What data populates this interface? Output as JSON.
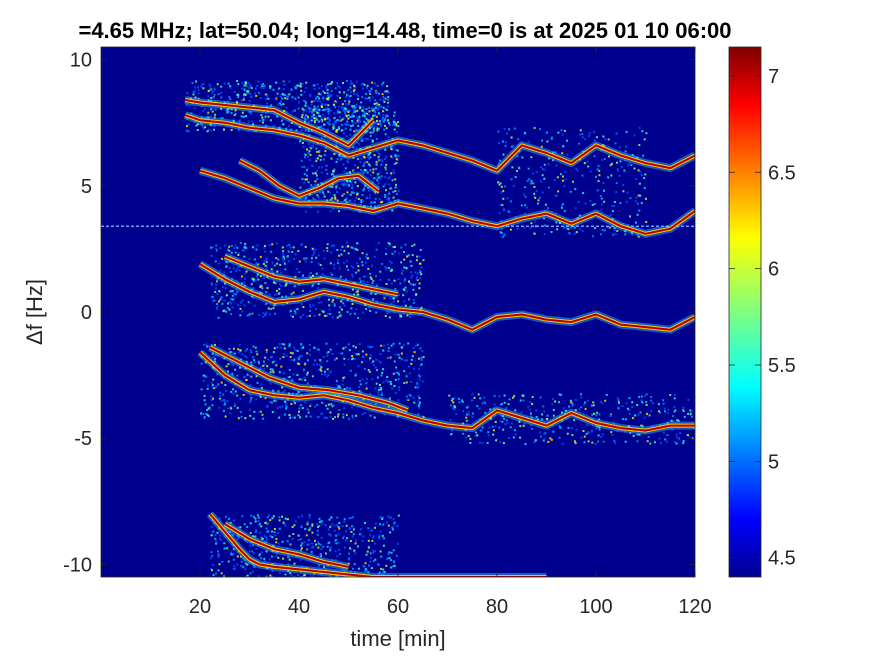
{
  "chart_data": {
    "type": "heatmap",
    "title": "=4.65 MHz;  lat=50.04; long=14.48, time=0 is at 2025 01 10 06:00",
    "xlabel": "time [min]",
    "ylabel": "Δf [Hz]",
    "xlim": [
      0,
      120
    ],
    "ylim": [
      -10.5,
      10.5
    ],
    "x_ticks": [
      "20",
      "40",
      "60",
      "80",
      "100",
      "120"
    ],
    "y_ticks": [
      "10",
      "5",
      "0",
      "-5",
      "-10"
    ],
    "colorbar": {
      "range": [
        4.4,
        7.15
      ],
      "ticks": [
        "7",
        "6.5",
        "6",
        "5.5",
        "5",
        "4.5"
      ],
      "colormap": "jet"
    },
    "background_color": "#00008f",
    "horizontal_line": {
      "y": 3.4,
      "color": "#6f9bff"
    },
    "traces": [
      {
        "name": "",
        "x": [
          17,
          20,
          25,
          30,
          35,
          40,
          45,
          50,
          55,
          60,
          65,
          70,
          75,
          80,
          85,
          90,
          95,
          100,
          105,
          110,
          115,
          120
        ],
        "y": [
          7.8,
          7.6,
          7.5,
          7.3,
          7.2,
          7.0,
          6.7,
          6.2,
          6.5,
          6.8,
          6.6,
          6.3,
          6.0,
          5.6,
          6.6,
          6.3,
          5.9,
          6.6,
          6.2,
          5.9,
          5.7,
          6.2
        ]
      },
      {
        "name": "",
        "x": [
          17,
          20,
          25,
          30,
          35,
          40,
          45,
          50,
          55
        ],
        "y": [
          8.4,
          8.3,
          8.2,
          8.1,
          8.0,
          7.5,
          7.1,
          6.6,
          7.6
        ]
      },
      {
        "name": "",
        "x": [
          20,
          25,
          30,
          35,
          40,
          45,
          50,
          55,
          60,
          65,
          70,
          75,
          80,
          85,
          90,
          95,
          100,
          105,
          110,
          115,
          120
        ],
        "y": [
          5.6,
          5.3,
          4.9,
          4.5,
          4.3,
          4.3,
          4.2,
          4.0,
          4.3,
          4.1,
          3.9,
          3.6,
          3.4,
          3.7,
          3.9,
          3.5,
          3.9,
          3.4,
          3.1,
          3.3,
          4.0
        ]
      },
      {
        "name": "",
        "x": [
          28,
          32,
          36,
          40,
          44,
          48,
          52,
          56
        ],
        "y": [
          6.0,
          5.6,
          5.0,
          4.6,
          4.9,
          5.3,
          5.4,
          4.8
        ]
      },
      {
        "name": "",
        "x": [
          20,
          25,
          30,
          35,
          40,
          45,
          50,
          55,
          60,
          65,
          70,
          75,
          80,
          85,
          90,
          95,
          100,
          105,
          110,
          115,
          120
        ],
        "y": [
          1.9,
          1.3,
          0.8,
          0.4,
          0.5,
          0.8,
          0.6,
          0.3,
          0.1,
          0.0,
          -0.3,
          -0.7,
          -0.2,
          -0.1,
          -0.3,
          -0.4,
          -0.1,
          -0.5,
          -0.6,
          -0.7,
          -0.2
        ]
      },
      {
        "name": "",
        "x": [
          25,
          30,
          35,
          40,
          45,
          50,
          55,
          60
        ],
        "y": [
          2.2,
          1.8,
          1.4,
          1.2,
          1.3,
          1.1,
          0.9,
          0.7
        ]
      },
      {
        "name": "",
        "x": [
          20,
          25,
          30,
          35,
          40,
          45,
          50,
          55,
          60,
          65,
          70,
          75,
          80,
          85,
          90,
          95,
          100,
          105,
          110,
          115,
          120
        ],
        "y": [
          -1.6,
          -2.5,
          -3.1,
          -3.3,
          -3.4,
          -3.3,
          -3.5,
          -3.8,
          -4.0,
          -4.3,
          -4.5,
          -4.6,
          -3.9,
          -4.2,
          -4.5,
          -4.0,
          -4.4,
          -4.6,
          -4.7,
          -4.5,
          -4.5
        ]
      },
      {
        "name": "",
        "x": [
          22,
          28,
          34,
          40,
          46,
          52,
          58,
          62
        ],
        "y": [
          -1.4,
          -2.0,
          -2.6,
          -3.0,
          -3.1,
          -3.3,
          -3.6,
          -3.9
        ]
      },
      {
        "name": "",
        "x": [
          22,
          25,
          28,
          30,
          32,
          35,
          40,
          45,
          50,
          55,
          60,
          65,
          70,
          75,
          80,
          85,
          90
        ],
        "y": [
          -8.0,
          -8.7,
          -9.4,
          -9.8,
          -10.0,
          -10.1,
          -10.2,
          -10.3,
          -10.4,
          -10.5,
          -10.5,
          -10.5,
          -10.5,
          -10.5,
          -10.5,
          -10.5,
          -10.5
        ]
      },
      {
        "name": "",
        "x": [
          25,
          30,
          35,
          40,
          45,
          50
        ],
        "y": [
          -8.4,
          -9.0,
          -9.4,
          -9.6,
          -9.9,
          -10.1
        ]
      }
    ],
    "speckle_regions": [
      {
        "x": [
          17,
          58
        ],
        "y": [
          7.2,
          9.2
        ],
        "density": 1.0
      },
      {
        "x": [
          40,
          60
        ],
        "y": [
          4.0,
          8.2
        ],
        "density": 1.0
      },
      {
        "x": [
          80,
          110
        ],
        "y": [
          3.0,
          7.4
        ],
        "density": 0.5
      },
      {
        "x": [
          22,
          65
        ],
        "y": [
          -0.2,
          2.8
        ],
        "density": 1.0
      },
      {
        "x": [
          20,
          65
        ],
        "y": [
          -4.2,
          -1.2
        ],
        "density": 1.0
      },
      {
        "x": [
          70,
          120
        ],
        "y": [
          -5.2,
          -3.2
        ],
        "density": 0.6
      },
      {
        "x": [
          22,
          60
        ],
        "y": [
          -10.5,
          -8.0
        ],
        "density": 0.8
      }
    ]
  }
}
